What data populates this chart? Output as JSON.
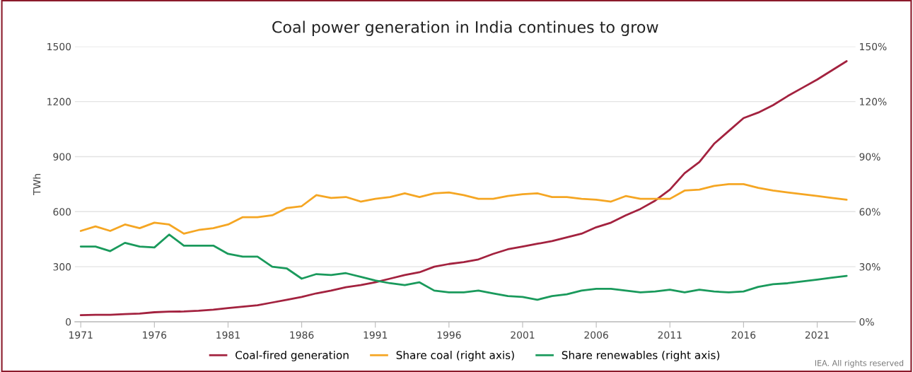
{
  "chart_data": {
    "type": "line",
    "title": "Coal power generation in India continues to grow",
    "ylabel": "TWh",
    "x": [
      1971,
      1972,
      1973,
      1974,
      1975,
      1976,
      1977,
      1978,
      1979,
      1980,
      1981,
      1982,
      1983,
      1984,
      1985,
      1986,
      1987,
      1988,
      1989,
      1990,
      1991,
      1992,
      1993,
      1994,
      1995,
      1996,
      1997,
      1998,
      1999,
      2000,
      2001,
      2002,
      2003,
      2004,
      2005,
      2006,
      2007,
      2008,
      2009,
      2010,
      2011,
      2012,
      2013,
      2014,
      2015,
      2016,
      2017,
      2018,
      2019,
      2020,
      2021,
      2022,
      2023
    ],
    "series": [
      {
        "name": "Coal-fired generation",
        "color": "#a3223f",
        "values": [
          36,
          38,
          38,
          42,
          45,
          52,
          55,
          56,
          60,
          66,
          75,
          82,
          90,
          105,
          120,
          135,
          155,
          170,
          188,
          200,
          215,
          235,
          255,
          270,
          300,
          315,
          325,
          340,
          370,
          395,
          410,
          425,
          440,
          460,
          480,
          515,
          540,
          580,
          615,
          660,
          720,
          810,
          870,
          970,
          1040,
          1110,
          1140,
          1180,
          1230,
          1275,
          1320,
          1370,
          1420
        ]
      },
      {
        "name": "Share coal (right axis)",
        "color": "#f5a623",
        "axis": "y2",
        "values": [
          49.5,
          52,
          49.5,
          53,
          51,
          54,
          53,
          48,
          50,
          51,
          53,
          57,
          57,
          58,
          62,
          63,
          69,
          67.5,
          68,
          65.5,
          67,
          68,
          70,
          68,
          70,
          70.5,
          69,
          67,
          67,
          68.5,
          69.5,
          70,
          68,
          68,
          67,
          66.5,
          65.5,
          68.5,
          67,
          67,
          67,
          71.5,
          72,
          74,
          75,
          75,
          73,
          71.5,
          70.5,
          69.5,
          68.5,
          67.5,
          66.5
        ]
      },
      {
        "name": "Share renewables (right axis)",
        "color": "#1a9a5c",
        "axis": "y2",
        "values": [
          41,
          41,
          38.5,
          43,
          41,
          40.5,
          47.5,
          41.5,
          41.5,
          41.5,
          37,
          35.5,
          35.5,
          30,
          29,
          23.5,
          26,
          25.5,
          26.5,
          24.5,
          22.5,
          21,
          20,
          21.5,
          17,
          16,
          16,
          17,
          15.5,
          14,
          13.5,
          12,
          14,
          15,
          17,
          18,
          18,
          17,
          16,
          16.5,
          17.5,
          16,
          17.5,
          16.5,
          16,
          16.5,
          19,
          20.5,
          21,
          22,
          23,
          24,
          25
        ]
      }
    ],
    "xlim": [
      1970.6,
      2023.6
    ],
    "xticks": [
      1971,
      1976,
      1981,
      1986,
      1991,
      1996,
      2001,
      2006,
      2011,
      2016,
      2021
    ],
    "ylim": [
      0,
      1500
    ],
    "yticks": [
      0,
      300,
      600,
      900,
      1200,
      1500
    ],
    "y2lim": [
      0,
      150
    ],
    "y2ticks": [
      {
        "value": 0,
        "label": "0%"
      },
      {
        "value": 30,
        "label": "30%"
      },
      {
        "value": 60,
        "label": "60%"
      },
      {
        "value": 90,
        "label": "90%"
      },
      {
        "value": 120,
        "label": "120%"
      },
      {
        "value": 150,
        "label": "150%"
      }
    ],
    "grid": "y",
    "legend": "bottom",
    "marker": "none",
    "line_style": "solid",
    "annotations": [
      "IEA. All rights reserved"
    ]
  }
}
